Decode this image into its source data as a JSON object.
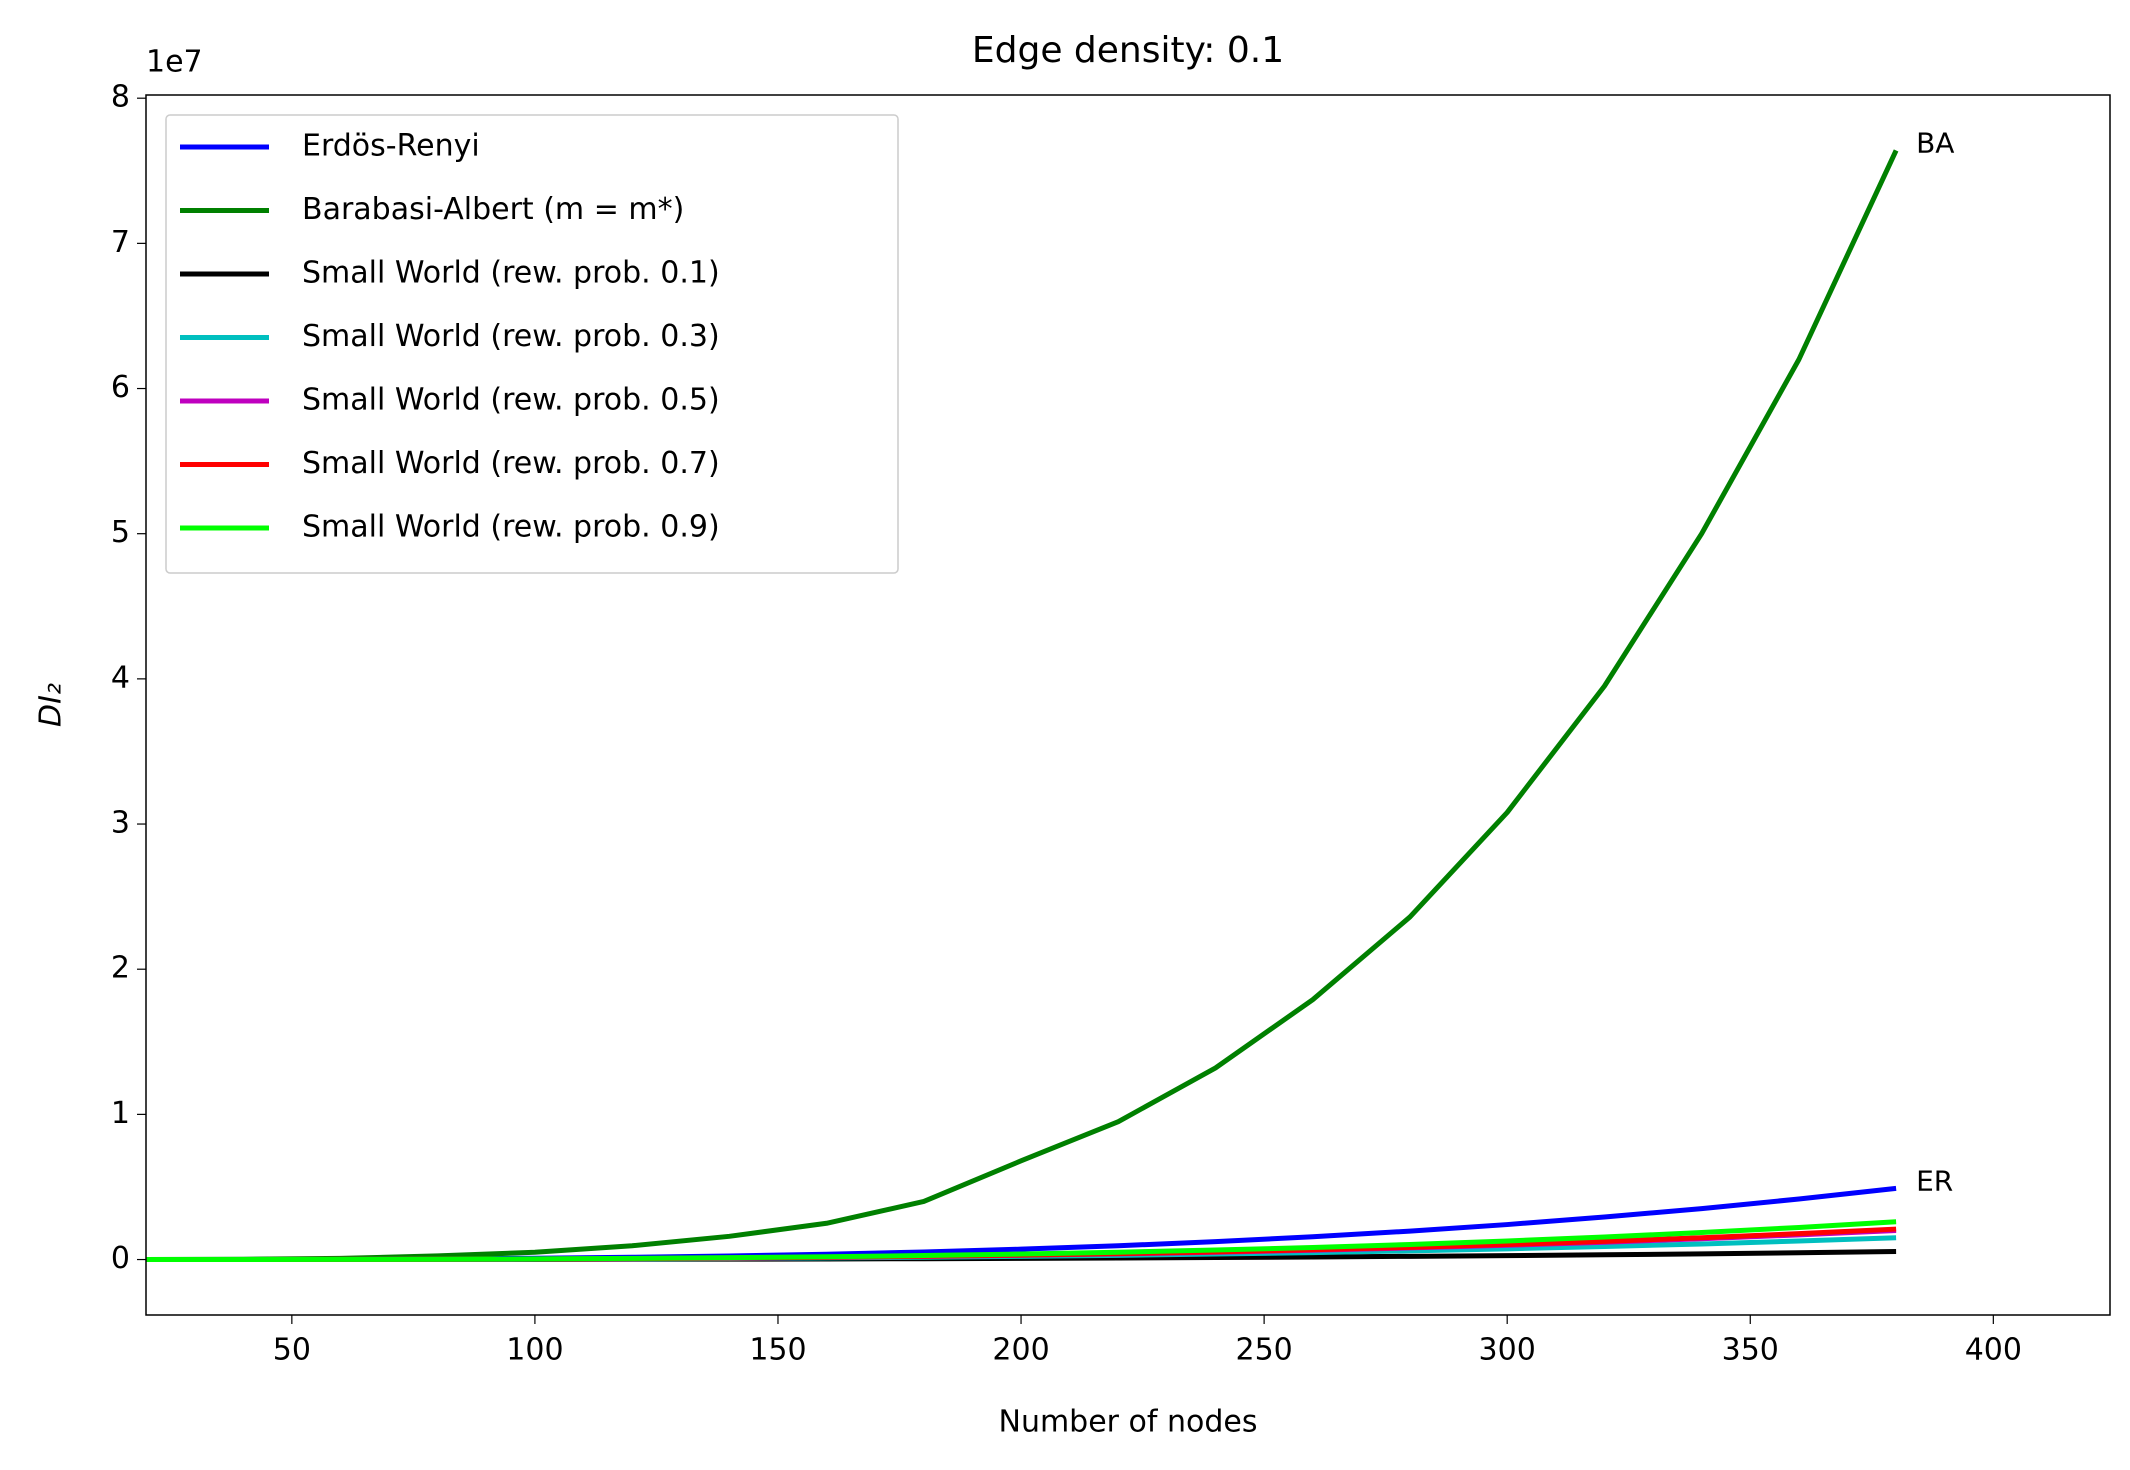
{
  "chart_data": {
    "type": "line",
    "title": "Edge density: 0.1",
    "x_label": "Number of nodes",
    "y_label": "DI₂",
    "y_offset_label": "1e7",
    "x": [
      20,
      40,
      60,
      80,
      100,
      120,
      140,
      160,
      180,
      200,
      220,
      240,
      260,
      280,
      300,
      320,
      340,
      360,
      380
    ],
    "series": [
      {
        "name": "Erdös-Renyi",
        "color": "#0000ff",
        "values": [
          700,
          5700,
          19000,
          46000,
          89000,
          154000,
          245000,
          366000,
          521000,
          714000,
          951000,
          1235000,
          1570000,
          1960000,
          2410000,
          2930000,
          3510000,
          4170000,
          4900000
        ]
      },
      {
        "name": "Barabasi-Albert (m = m*)",
        "color": "#008000",
        "values": [
          0,
          20000,
          80000,
          250000,
          500000,
          950000,
          1600000,
          2500000,
          4000000,
          6800000,
          9500000,
          13200000,
          17900000,
          23600000,
          30800000,
          39500000,
          50000000,
          62000000,
          76400000
        ]
      },
      {
        "name": "Small World (rew. prob. 0.1)",
        "color": "#000000",
        "values": [
          80,
          700,
          2100,
          5100,
          10000,
          17000,
          28000,
          41000,
          58000,
          80000,
          107000,
          139000,
          176000,
          220000,
          271000,
          328000,
          394000,
          468000,
          550000
        ]
      },
      {
        "name": "Small World (rew. prob. 0.3)",
        "color": "#00bfbf",
        "values": [
          200,
          1800,
          5900,
          14000,
          27000,
          47000,
          75000,
          113000,
          159000,
          219000,
          291000,
          378000,
          480000,
          600000,
          738000,
          896000,
          1074000,
          1275000,
          1500000
        ]
      },
      {
        "name": "Small World (rew. prob. 0.5)",
        "color": "#bf00bf",
        "values": [
          300,
          2400,
          7800,
          19000,
          36000,
          62000,
          100000,
          150000,
          212000,
          292000,
          388000,
          504000,
          640000,
          800000,
          984000,
          1194000,
          1432000,
          1700000,
          2000000
        ]
      },
      {
        "name": "Small World (rew. prob. 0.7)",
        "color": "#ff0000",
        "values": [
          300,
          2500,
          8200,
          20000,
          38000,
          65000,
          105000,
          158000,
          223000,
          307000,
          407000,
          529000,
          672000,
          840000,
          1033000,
          1254000,
          1504000,
          1785000,
          2100000
        ]
      },
      {
        "name": "Small World (rew. prob. 0.9)",
        "color": "#00ff00",
        "values": [
          400,
          3100,
          10000,
          24000,
          47000,
          81000,
          130000,
          195000,
          276000,
          380000,
          504000,
          655000,
          832000,
          1040000,
          1279000,
          1552000,
          1862000,
          2210000,
          2600000
        ]
      }
    ],
    "annotations": [
      "BA",
      "ER"
    ],
    "xlim": [
      20,
      424
    ],
    "ylim": [
      -3820000,
      80220000
    ],
    "xticks": [
      50,
      100,
      150,
      200,
      250,
      300,
      350,
      400
    ],
    "yticks": [
      {
        "value": 0,
        "label": "0"
      },
      {
        "value": 10000000,
        "label": "1"
      },
      {
        "value": 20000000,
        "label": "2"
      },
      {
        "value": 30000000,
        "label": "3"
      },
      {
        "value": 40000000,
        "label": "4"
      },
      {
        "value": 50000000,
        "label": "5"
      },
      {
        "value": 60000000,
        "label": "6"
      },
      {
        "value": 70000000,
        "label": "7"
      },
      {
        "value": 80000000,
        "label": "8"
      }
    ],
    "legend": "upper left",
    "grid": false
  }
}
